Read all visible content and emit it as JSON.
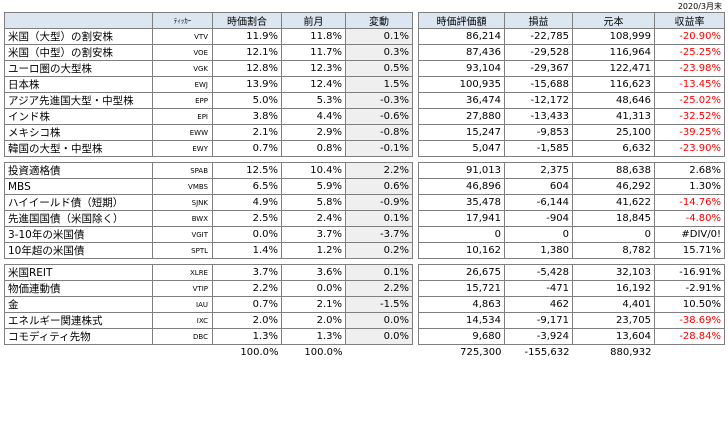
{
  "date": "2020/3月末",
  "left_headers": [
    "",
    "ﾃｨｯｶｰ",
    "時価割合",
    "前月",
    "変動"
  ],
  "right_headers": [
    "時価評価額",
    "損益",
    "元本",
    "収益率"
  ],
  "groups": [
    {
      "rows": [
        {
          "name": "米国（大型）の割安株",
          "ticker": "VTV",
          "current": "11.9%",
          "prev": "11.8%",
          "change": "0.1%",
          "value": "86,214",
          "pl": "-22,785",
          "principal": "108,999",
          "rate": "-20.90%",
          "rate_neg": true
        },
        {
          "name": "米国（中型）の割安株",
          "ticker": "VOE",
          "current": "12.1%",
          "prev": "11.7%",
          "change": "0.3%",
          "value": "87,436",
          "pl": "-29,528",
          "principal": "116,964",
          "rate": "-25.25%",
          "rate_neg": true
        },
        {
          "name": "ユーロ圏の大型株",
          "ticker": "VGK",
          "current": "12.8%",
          "prev": "12.3%",
          "change": "0.5%",
          "value": "93,104",
          "pl": "-29,367",
          "principal": "122,471",
          "rate": "-23.98%",
          "rate_neg": true
        },
        {
          "name": "日本株",
          "ticker": "EWJ",
          "current": "13.9%",
          "prev": "12.4%",
          "change": "1.5%",
          "value": "100,935",
          "pl": "-15,688",
          "principal": "116,623",
          "rate": "-13.45%",
          "rate_neg": true
        },
        {
          "name": "アジア先進国大型・中型株",
          "ticker": "EPP",
          "current": "5.0%",
          "prev": "5.3%",
          "change": "-0.3%",
          "value": "36,474",
          "pl": "-12,172",
          "principal": "48,646",
          "rate": "-25.02%",
          "rate_neg": true
        },
        {
          "name": "インド株",
          "ticker": "EPI",
          "current": "3.8%",
          "prev": "4.4%",
          "change": "-0.6%",
          "value": "27,880",
          "pl": "-13,433",
          "principal": "41,313",
          "rate": "-32.52%",
          "rate_neg": true
        },
        {
          "name": "メキシコ株",
          "ticker": "EWW",
          "current": "2.1%",
          "prev": "2.9%",
          "change": "-0.8%",
          "value": "15,247",
          "pl": "-9,853",
          "principal": "25,100",
          "rate": "-39.25%",
          "rate_neg": true
        },
        {
          "name": "韓国の大型・中型株",
          "ticker": "EWY",
          "current": "0.7%",
          "prev": "0.8%",
          "change": "-0.1%",
          "value": "5,047",
          "pl": "-1,585",
          "principal": "6,632",
          "rate": "-23.90%",
          "rate_neg": true
        }
      ]
    },
    {
      "rows": [
        {
          "name": "投資適格債",
          "ticker": "SPAB",
          "current": "12.5%",
          "prev": "10.4%",
          "change": "2.2%",
          "value": "91,013",
          "pl": "2,375",
          "principal": "88,638",
          "rate": "2.68%",
          "rate_neg": false
        },
        {
          "name": "MBS",
          "ticker": "VMBS",
          "current": "6.5%",
          "prev": "5.9%",
          "change": "0.6%",
          "value": "46,896",
          "pl": "604",
          "principal": "46,292",
          "rate": "1.30%",
          "rate_neg": false
        },
        {
          "name": "ハイイールド債（短期）",
          "ticker": "SJNK",
          "current": "4.9%",
          "prev": "5.8%",
          "change": "-0.9%",
          "value": "35,478",
          "pl": "-6,144",
          "principal": "41,622",
          "rate": "-14.76%",
          "rate_neg": true
        },
        {
          "name": "先進国国債（米国除く）",
          "ticker": "BWX",
          "current": "2.5%",
          "prev": "2.4%",
          "change": "0.1%",
          "value": "17,941",
          "pl": "-904",
          "principal": "18,845",
          "rate": "-4.80%",
          "rate_neg": true
        },
        {
          "name": "3-10年の米国債",
          "ticker": "VGIT",
          "current": "0.0%",
          "prev": "3.7%",
          "change": "-3.7%",
          "value": "0",
          "pl": "0",
          "principal": "0",
          "rate": "#DIV/0!",
          "rate_neg": false
        },
        {
          "name": "10年超の米国債",
          "ticker": "SPTL",
          "current": "1.4%",
          "prev": "1.2%",
          "change": "0.2%",
          "value": "10,162",
          "pl": "1,380",
          "principal": "8,782",
          "rate": "15.71%",
          "rate_neg": false
        }
      ]
    },
    {
      "rows": [
        {
          "name": "米国REIT",
          "ticker": "XLRE",
          "current": "3.7%",
          "prev": "3.6%",
          "change": "0.1%",
          "value": "26,675",
          "pl": "-5,428",
          "principal": "32,103",
          "rate": "-16.91%",
          "rate_neg": false
        },
        {
          "name": "物価連動債",
          "ticker": "VTIP",
          "current": "2.2%",
          "prev": "0.0%",
          "change": "2.2%",
          "value": "15,721",
          "pl": "-471",
          "principal": "16,192",
          "rate": "-2.91%",
          "rate_neg": false
        },
        {
          "name": "金",
          "ticker": "IAU",
          "current": "0.7%",
          "prev": "2.1%",
          "change": "-1.5%",
          "value": "4,863",
          "pl": "462",
          "principal": "4,401",
          "rate": "10.50%",
          "rate_neg": false
        },
        {
          "name": "エネルギー関連株式",
          "ticker": "IXC",
          "current": "2.0%",
          "prev": "2.0%",
          "change": "0.0%",
          "value": "14,534",
          "pl": "-9,171",
          "principal": "23,705",
          "rate": "-38.69%",
          "rate_neg": true
        },
        {
          "name": "コモディティ先物",
          "ticker": "DBC",
          "current": "1.3%",
          "prev": "1.3%",
          "change": "0.0%",
          "value": "9,680",
          "pl": "-3,924",
          "principal": "13,604",
          "rate": "-28.84%",
          "rate_neg": true
        }
      ]
    }
  ],
  "totals": {
    "current": "100.0%",
    "prev": "100.0%",
    "value": "725,300",
    "pl": "-155,632",
    "principal": "880,932"
  }
}
